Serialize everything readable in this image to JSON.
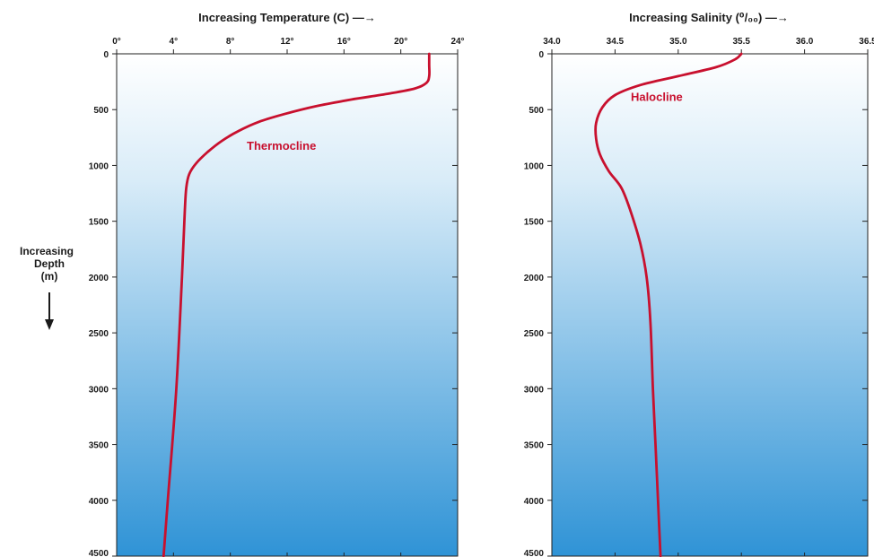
{
  "depth_axis_label": [
    "Increasing",
    "Depth",
    "(m)"
  ],
  "chart_data": [
    {
      "type": "line",
      "title": "",
      "xlabel": "Increasing Temperature (C) —→",
      "ylabel": "Increasing Depth (m)",
      "xlim": [
        0,
        24
      ],
      "ylim": [
        0,
        4500
      ],
      "y_inverted": true,
      "x_axis_position": "top",
      "x_tick_values": [
        0,
        4,
        8,
        12,
        16,
        20,
        24
      ],
      "x_tick_labels": [
        "0°",
        "4°",
        "8°",
        "12°",
        "16°",
        "20°",
        "24°"
      ],
      "y_tick_values": [
        0,
        500,
        1000,
        1500,
        2000,
        2500,
        3000,
        3500,
        4000,
        4500
      ],
      "y_tick_labels": [
        "0",
        "500",
        "1000",
        "1500",
        "2000",
        "2500",
        "3000",
        "3500",
        "4000",
        "4500"
      ],
      "grid": false,
      "line_color": "#c8102e",
      "background_gradient": [
        "#ffffff",
        "#2f93d6"
      ],
      "series": [
        {
          "name": "",
          "points": [
            [
              22,
              0
            ],
            [
              22,
              100
            ],
            [
              22,
              200
            ],
            [
              21.8,
              260
            ],
            [
              21,
              310
            ],
            [
              19,
              360
            ],
            [
              16.5,
              410
            ],
            [
              14,
              470
            ],
            [
              11.8,
              540
            ],
            [
              10,
              610
            ],
            [
              8.6,
              690
            ],
            [
              7.4,
              780
            ],
            [
              6.4,
              880
            ],
            [
              5.6,
              980
            ],
            [
              5.1,
              1080
            ],
            [
              4.9,
              1200
            ],
            [
              4.8,
              1400
            ],
            [
              4.6,
              2000
            ],
            [
              4.2,
              3000
            ],
            [
              3.6,
              4000
            ],
            [
              3.3,
              4500
            ]
          ]
        }
      ],
      "annotations": [
        {
          "text": "Thermocline",
          "x": 11.6,
          "y": 860
        }
      ]
    },
    {
      "type": "line",
      "title": "",
      "xlabel": "Increasing Salinity (⁰/₀₀) —→",
      "ylabel": "",
      "xlim": [
        34.0,
        36.5
      ],
      "ylim": [
        0,
        4500
      ],
      "y_inverted": true,
      "x_axis_position": "top",
      "x_tick_values": [
        34.0,
        34.5,
        35.0,
        35.5,
        36.0,
        36.5
      ],
      "x_tick_labels": [
        "34.0",
        "34.5",
        "35.0",
        "35.5",
        "36.0",
        "36.5"
      ],
      "y_tick_values": [
        0,
        500,
        1000,
        1500,
        2000,
        2500,
        3000,
        3500,
        4000,
        4500
      ],
      "y_tick_labels": [
        "0",
        "500",
        "1000",
        "1500",
        "2000",
        "2500",
        "3000",
        "3500",
        "4000",
        "4500"
      ],
      "grid": false,
      "line_color": "#c8102e",
      "background_gradient": [
        "#ffffff",
        "#2f93d6"
      ],
      "series": [
        {
          "name": "",
          "points": [
            [
              35.5,
              0
            ],
            [
              35.45,
              50
            ],
            [
              35.3,
              120
            ],
            [
              35.0,
              200
            ],
            [
              34.7,
              280
            ],
            [
              34.5,
              370
            ],
            [
              34.4,
              480
            ],
            [
              34.35,
              620
            ],
            [
              34.35,
              760
            ],
            [
              34.38,
              900
            ],
            [
              34.45,
              1050
            ],
            [
              34.55,
              1200
            ],
            [
              34.62,
              1400
            ],
            [
              34.7,
              1700
            ],
            [
              34.75,
              2000
            ],
            [
              34.78,
              2400
            ],
            [
              34.8,
              3000
            ],
            [
              34.82,
              3500
            ],
            [
              34.84,
              4000
            ],
            [
              34.86,
              4500
            ]
          ]
        }
      ],
      "annotations": [
        {
          "text": "Halocline",
          "x": 34.83,
          "y": 420
        }
      ]
    }
  ]
}
